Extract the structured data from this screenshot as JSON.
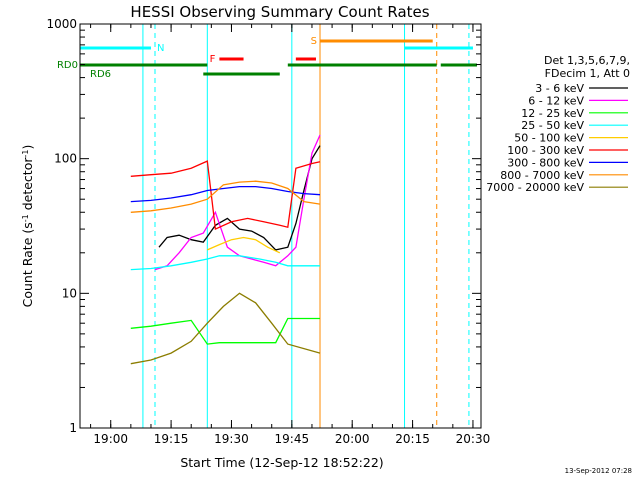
{
  "chart_data": {
    "type": "line",
    "title": "HESSI Observing Summary Count Rates",
    "xlabel": "Start Time (12-Sep-12 18:52:22)",
    "ylabel_main": "Count Rate (s",
    "ylabel_sup1": "-1",
    "ylabel_mid": " detector",
    "ylabel_sup2": "-1",
    "ylabel_end": ")",
    "xscale": "time",
    "yscale": "log",
    "xlim": [
      "18:52:22",
      "20:32:00"
    ],
    "ylim": [
      1,
      1000
    ],
    "x_ticks": [
      "19:00",
      "19:15",
      "19:30",
      "19:45",
      "20:00",
      "20:15",
      "20:30"
    ],
    "y_ticks": [
      "1",
      "10",
      "100",
      "1000"
    ],
    "legend_header": [
      "Det 1,3,5,6,7,9,",
      "FDecim 1, Att 0"
    ],
    "series": [
      {
        "name": "3 - 6 keV",
        "color": "#000000",
        "x": [
          "19:05",
          "19:08",
          "19:10",
          "19:12",
          "19:14",
          "19:17",
          "19:20",
          "19:23",
          "19:26",
          "19:29",
          "19:32",
          "19:35",
          "19:38",
          "19:41",
          "19:44",
          "19:46",
          "19:48",
          "19:50",
          "19:52"
        ],
        "y": [
          null,
          null,
          null,
          22,
          26,
          27,
          25,
          24,
          32,
          36,
          30,
          29,
          26,
          21,
          22,
          33,
          58,
          100,
          125
        ]
      },
      {
        "name": "6 - 12 keV",
        "color": "#ff00ff",
        "x": [
          "19:11",
          "19:14",
          "19:17",
          "19:20",
          "19:23",
          "19:26",
          "19:29",
          "19:32",
          "19:35",
          "19:38",
          "19:41",
          "19:44",
          "19:46",
          "19:48",
          "19:50",
          "19:52"
        ],
        "y": [
          15,
          16,
          20,
          26,
          28,
          40,
          22,
          19,
          18,
          17,
          16,
          19,
          22,
          50,
          110,
          150
        ]
      },
      {
        "name": "12 - 25 keV",
        "color": "#00ff00",
        "x": [
          "19:05",
          "19:10",
          "19:15",
          "19:20",
          "19:24",
          "19:27",
          "19:32",
          "19:37",
          "19:41",
          "19:44",
          "19:52"
        ],
        "y": [
          5.5,
          5.7,
          6.0,
          6.3,
          4.2,
          4.3,
          4.3,
          4.3,
          4.3,
          6.5,
          6.5
        ]
      },
      {
        "name": "25 - 50 keV",
        "color": "#00ffff",
        "x": [
          "19:05",
          "19:10",
          "19:15",
          "19:20",
          "19:24",
          "19:27",
          "19:32",
          "19:37",
          "19:41",
          "19:44",
          "19:52"
        ],
        "y": [
          15,
          15.3,
          16,
          17,
          18,
          19,
          19,
          18,
          17,
          16,
          16
        ]
      },
      {
        "name": "50 - 100 keV",
        "color": "#ffcc00",
        "x": [
          "19:24",
          "19:27",
          "19:30",
          "19:33",
          "19:36",
          "19:39",
          "19:42"
        ],
        "y": [
          21,
          23,
          25,
          26,
          25,
          22,
          20
        ]
      },
      {
        "name": "100 - 300 keV",
        "color": "#ff0000",
        "x": [
          "19:05",
          "19:10",
          "19:15",
          "19:20",
          "19:24",
          "19:26",
          "19:30",
          "19:34",
          "19:38",
          "19:42",
          "19:44",
          "19:46",
          "19:50",
          "19:52"
        ],
        "y": [
          74,
          76,
          78,
          85,
          96,
          30,
          34,
          36,
          34,
          32,
          31,
          85,
          92,
          95
        ]
      },
      {
        "name": "300 - 800 keV",
        "color": "#0000ff",
        "x": [
          "19:05",
          "19:10",
          "19:15",
          "19:20",
          "19:24",
          "19:28",
          "19:32",
          "19:36",
          "19:40",
          "19:44",
          "19:48",
          "19:52"
        ],
        "y": [
          48,
          49,
          51,
          54,
          58,
          60,
          62,
          62,
          60,
          57,
          55,
          54
        ]
      },
      {
        "name": "800 - 7000 keV",
        "color": "#ff8c00",
        "x": [
          "19:05",
          "19:10",
          "19:15",
          "19:20",
          "19:24",
          "19:28",
          "19:32",
          "19:36",
          "19:40",
          "19:44",
          "19:48",
          "19:52"
        ],
        "y": [
          40,
          41,
          43,
          46,
          50,
          64,
          67,
          68,
          66,
          60,
          48,
          46
        ]
      },
      {
        "name": "7000 - 20000 keV",
        "color": "#8b7d00",
        "x": [
          "19:05",
          "19:10",
          "19:15",
          "19:20",
          "19:24",
          "19:28",
          "19:32",
          "19:36",
          "19:40",
          "19:44",
          "19:52"
        ],
        "y": [
          3.0,
          3.2,
          3.6,
          4.4,
          6.0,
          8.0,
          10.0,
          8.5,
          6.0,
          4.2,
          3.6
        ]
      }
    ],
    "flag_bars": [
      {
        "label": "N",
        "color": "#00ffff",
        "segments": [
          [
            "18:52:22",
            "19:10"
          ],
          [
            "20:13",
            "20:30"
          ]
        ]
      },
      {
        "label": "RD0",
        "color": "#008000",
        "segments": [
          [
            "18:52:22",
            "19:24"
          ],
          [
            "19:44",
            "20:21"
          ],
          [
            "20:22",
            "20:31"
          ]
        ]
      },
      {
        "label": "RD6",
        "color": "#008000",
        "segments": [
          [
            "19:23",
            "19:42"
          ]
        ]
      },
      {
        "label": "F",
        "color": "#ff0000",
        "segments": [
          [
            "19:27",
            "19:33"
          ],
          [
            "19:46",
            "19:51"
          ]
        ]
      },
      {
        "label": "S",
        "color": "#ff8c00",
        "segments": [
          [
            "19:52",
            "20:20"
          ]
        ]
      }
    ],
    "vertical_lines": [
      {
        "x": "18:52:22",
        "color": "#00ffff",
        "style": "solid"
      },
      {
        "x": "19:08",
        "color": "#00ffff",
        "style": "solid"
      },
      {
        "x": "19:11",
        "color": "#00ffff",
        "style": "dashed"
      },
      {
        "x": "19:24",
        "color": "#00ffff",
        "style": "solid"
      },
      {
        "x": "19:45",
        "color": "#00ffff",
        "style": "solid"
      },
      {
        "x": "19:52",
        "color": "#ff8c00",
        "style": "solid"
      },
      {
        "x": "20:13",
        "color": "#00ffff",
        "style": "solid"
      },
      {
        "x": "20:21",
        "color": "#ff8c00",
        "style": "dashed"
      },
      {
        "x": "20:29",
        "color": "#00ffff",
        "style": "dashed"
      }
    ],
    "footer": "13-Sep-2012 07:28"
  }
}
